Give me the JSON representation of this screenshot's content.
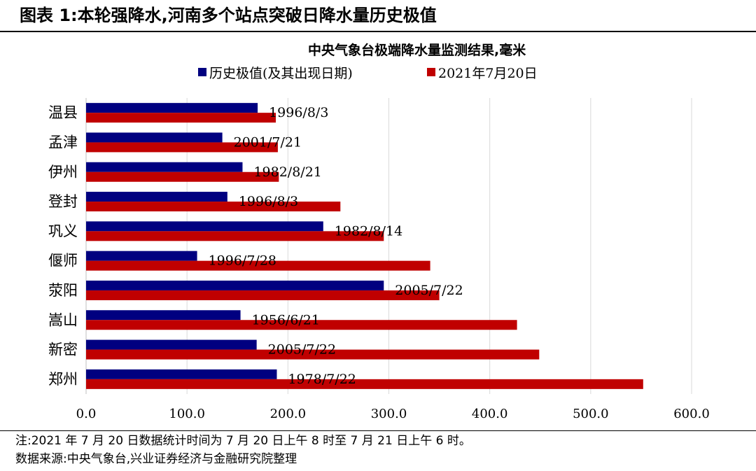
{
  "figure_title": "图表 1:本轮强降水,河南多个站点突破日降水量历史极值",
  "chart_data": {
    "type": "bar",
    "orientation": "horizontal",
    "title": "中央气象台极端降水量监测结果,毫米",
    "categories": [
      "温县",
      "孟津",
      "伊州",
      "登封",
      "巩义",
      "偃师",
      "荥阳",
      "嵩山",
      "新密",
      "郑州"
    ],
    "series": [
      {
        "name": "历史极值(及其出现日期)",
        "color": "#000080",
        "values": [
          170,
          135,
          155,
          140,
          235,
          110,
          295,
          153,
          169,
          189
        ],
        "labels": [
          "1996/8/3",
          "2001/7/21",
          "1982/8/21",
          "1996/8/3",
          "1982/8/14",
          "1996/7/28",
          "2005/7/22",
          "1956/6/21",
          "2005/7/22",
          "1978/7/22"
        ]
      },
      {
        "name": "2021年7月20日",
        "color": "#C00000",
        "values": [
          188,
          190,
          191,
          252,
          295,
          341,
          350,
          427,
          449,
          552
        ]
      }
    ],
    "xlim": [
      0,
      600
    ],
    "xticks": [
      0,
      100,
      200,
      300,
      400,
      500,
      600
    ],
    "xtick_labels": [
      "0.0",
      "100.0",
      "200.0",
      "300.0",
      "400.0",
      "500.0",
      "600.0"
    ],
    "grid": "vertical",
    "legend_position": "top"
  },
  "notes": {
    "note_line": "注:2021 年 7 月 20 日数据统计时间为 7 月 20 日上午 8 时至 7 月 21 日上午 6 时。",
    "source_line": "数据来源:中央气象台,兴业证券经济与金融研究院整理"
  }
}
